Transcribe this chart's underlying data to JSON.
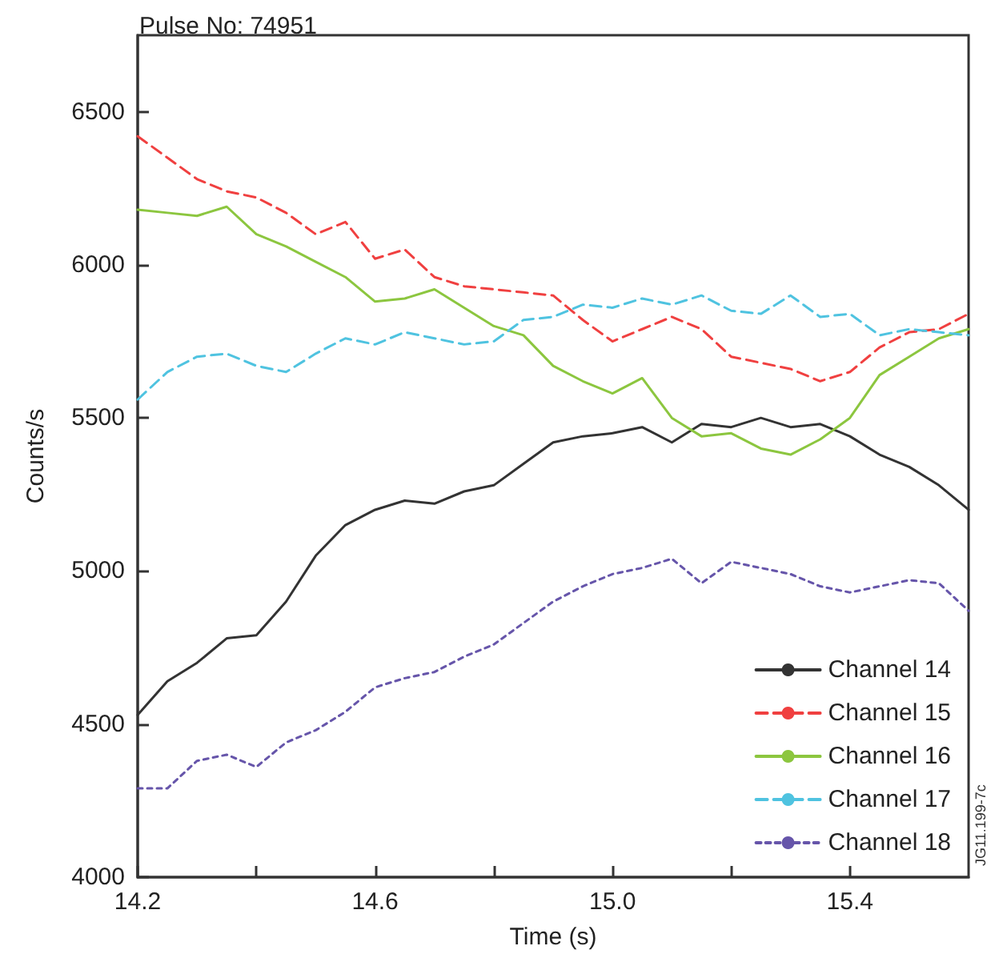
{
  "chart_data": {
    "type": "line",
    "title": "Pulse No: 74951",
    "xlabel": "Time (s)",
    "ylabel": "Counts/s",
    "x": [
      14.2,
      14.25,
      14.3,
      14.35,
      14.4,
      14.45,
      14.5,
      14.55,
      14.6,
      14.65,
      14.7,
      14.75,
      14.8,
      14.85,
      14.9,
      14.95,
      15.0,
      15.05,
      15.1,
      15.15,
      15.2,
      15.25,
      15.3,
      15.35,
      15.4,
      15.45,
      15.5,
      15.55,
      15.6
    ],
    "series": [
      {
        "name": "Channel 14",
        "color": "#333333",
        "line_style": "solid",
        "values": [
          4530,
          4640,
          4700,
          4780,
          4790,
          4900,
          5050,
          5150,
          5200,
          5230,
          5220,
          5260,
          5280,
          5350,
          5420,
          5440,
          5450,
          5470,
          5420,
          5480,
          5470,
          5500,
          5470,
          5480,
          5440,
          5380,
          5340,
          5280,
          5200
        ]
      },
      {
        "name": "Channel 15",
        "color": "#f04040",
        "line_style": "dashed",
        "values": [
          6420,
          6350,
          6280,
          6240,
          6220,
          6170,
          6100,
          6140,
          6020,
          6050,
          5960,
          5930,
          5920,
          5910,
          5900,
          5820,
          5750,
          5790,
          5830,
          5790,
          5700,
          5680,
          5660,
          5620,
          5650,
          5730,
          5780,
          5790,
          5840
        ]
      },
      {
        "name": "Channel 16",
        "color": "#8cc63f",
        "line_style": "solid",
        "values": [
          6180,
          6170,
          6160,
          6190,
          6100,
          6060,
          6010,
          5960,
          5880,
          5890,
          5920,
          5860,
          5800,
          5770,
          5670,
          5620,
          5580,
          5630,
          5500,
          5440,
          5450,
          5400,
          5380,
          5430,
          5500,
          5640,
          5700,
          5760,
          5790
        ]
      },
      {
        "name": "Channel 17",
        "color": "#4fc3e0",
        "line_style": "dashed",
        "values": [
          5560,
          5650,
          5700,
          5710,
          5670,
          5650,
          5710,
          5760,
          5740,
          5780,
          5760,
          5740,
          5750,
          5820,
          5830,
          5870,
          5860,
          5890,
          5870,
          5900,
          5850,
          5840,
          5900,
          5830,
          5840,
          5770,
          5790,
          5780,
          5770
        ]
      },
      {
        "name": "Channel 18",
        "color": "#6655aa",
        "line_style": "dotted",
        "values": [
          4290,
          4290,
          4380,
          4400,
          4360,
          4440,
          4480,
          4540,
          4620,
          4650,
          4670,
          4720,
          4760,
          4830,
          4900,
          4950,
          4990,
          5010,
          5040,
          4960,
          5030,
          5010,
          4990,
          4950,
          4930,
          4950,
          4970,
          4960,
          4870
        ]
      }
    ],
    "xlim": [
      14.2,
      15.6
    ],
    "xticks": [
      14.2,
      {
        "value": 14.4,
        "label": null
      },
      14.6,
      {
        "value": 14.8,
        "label": null
      },
      {
        "value": 15.0,
        "label": "15.0"
      },
      {
        "value": 15.2,
        "label": null
      },
      15.4
    ],
    "ylim": [
      4000,
      6750
    ],
    "yticks": [
      4000,
      4500,
      5000,
      5500,
      6000,
      6500
    ],
    "grid": false,
    "legend": "bottom right",
    "marker": "none",
    "annotations": [
      "JG11.199-7c"
    ]
  }
}
